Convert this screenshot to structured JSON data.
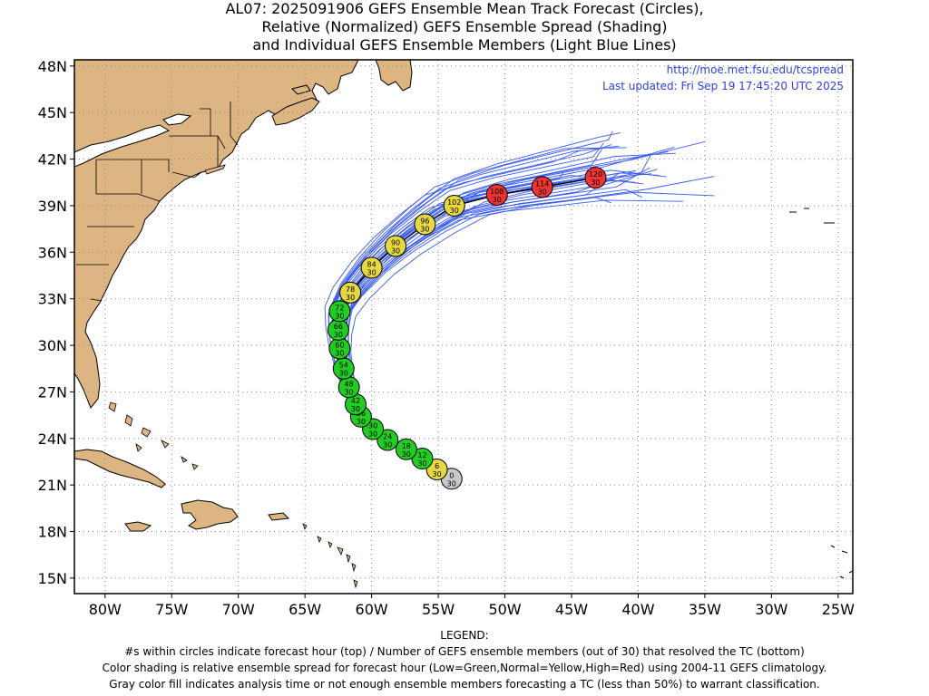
{
  "title": {
    "line1": "AL07: 2025091906 GEFS Ensemble Mean Track Forecast (Circles),",
    "line2": "Relative (Normalized) GEFS Ensemble Spread (Shading)",
    "line3": "and Individual GEFS Ensemble Members (Light Blue Lines)"
  },
  "header_info": {
    "url": "http://moe.met.fsu.edu/tcspread",
    "updated": "Last updated: Fri Sep 19 17:45:20 UTC 2025"
  },
  "axes": {
    "lat_labels": [
      "48N",
      "45N",
      "42N",
      "39N",
      "36N",
      "33N",
      "30N",
      "27N",
      "24N",
      "21N",
      "18N",
      "15N"
    ],
    "lat_values": [
      48,
      45,
      42,
      39,
      36,
      33,
      30,
      27,
      24,
      21,
      18,
      15
    ],
    "lon_labels": [
      "80W",
      "75W",
      "70W",
      "65W",
      "60W",
      "55W",
      "50W",
      "45W",
      "40W",
      "35W",
      "30W",
      "25W"
    ],
    "lon_values": [
      80,
      75,
      70,
      65,
      60,
      55,
      50,
      45,
      40,
      35,
      30,
      25
    ],
    "lon_range_w": [
      82.3,
      23.9
    ],
    "lat_range_n": [
      14.0,
      48.4
    ]
  },
  "colors": {
    "land": "#dcb582",
    "ocean": "#ffffff",
    "member_line": "#3a5cf0",
    "mean_track": "#000000",
    "low_spread": "#22cc22",
    "normal_spread": "#e6d840",
    "high_spread": "#ee3333",
    "analysis": "#c8c8c8",
    "grid": "#888888",
    "header_link": "#3040e0"
  },
  "track": [
    {
      "hour": "0",
      "members": "30",
      "lat": 21.4,
      "lon_w": 54.0,
      "cat": "analysis"
    },
    {
      "hour": "6",
      "members": "30",
      "lat": 22.0,
      "lon_w": 55.1,
      "cat": "normal"
    },
    {
      "hour": "12",
      "members": "30",
      "lat": 22.7,
      "lon_w": 56.2,
      "cat": "low"
    },
    {
      "hour": "18",
      "members": "30",
      "lat": 23.3,
      "lon_w": 57.4,
      "cat": "low"
    },
    {
      "hour": "24",
      "members": "30",
      "lat": 23.9,
      "lon_w": 58.8,
      "cat": "low"
    },
    {
      "hour": "30",
      "members": "30",
      "lat": 24.6,
      "lon_w": 59.9,
      "cat": "low"
    },
    {
      "hour": "36",
      "members": "30",
      "lat": 25.4,
      "lon_w": 60.8,
      "cat": "low"
    },
    {
      "hour": "42",
      "members": "30",
      "lat": 26.2,
      "lon_w": 61.2,
      "cat": "low"
    },
    {
      "hour": "48",
      "members": "30",
      "lat": 27.3,
      "lon_w": 61.7,
      "cat": "low"
    },
    {
      "hour": "54",
      "members": "30",
      "lat": 28.5,
      "lon_w": 62.1,
      "cat": "low"
    },
    {
      "hour": "60",
      "members": "30",
      "lat": 29.8,
      "lon_w": 62.4,
      "cat": "low"
    },
    {
      "hour": "66",
      "members": "30",
      "lat": 31.0,
      "lon_w": 62.5,
      "cat": "low"
    },
    {
      "hour": "72",
      "members": "30",
      "lat": 32.2,
      "lon_w": 62.4,
      "cat": "low"
    },
    {
      "hour": "78",
      "members": "30",
      "lat": 33.4,
      "lon_w": 61.6,
      "cat": "normal"
    },
    {
      "hour": "84",
      "members": "30",
      "lat": 35.0,
      "lon_w": 60.0,
      "cat": "normal"
    },
    {
      "hour": "90",
      "members": "30",
      "lat": 36.4,
      "lon_w": 58.2,
      "cat": "normal"
    },
    {
      "hour": "96",
      "members": "30",
      "lat": 37.8,
      "lon_w": 56.0,
      "cat": "normal"
    },
    {
      "hour": "102",
      "members": "30",
      "lat": 39.0,
      "lon_w": 53.8,
      "cat": "normal"
    },
    {
      "hour": "108",
      "members": "30",
      "lat": 39.7,
      "lon_w": 50.6,
      "cat": "high"
    },
    {
      "hour": "114",
      "members": "30",
      "lat": 40.2,
      "lon_w": 47.2,
      "cat": "high"
    },
    {
      "hour": "120",
      "members": "30",
      "lat": 40.8,
      "lon_w": 43.2,
      "cat": "high"
    }
  ],
  "legend": {
    "heading": "LEGEND:",
    "line1": "#s within circles indicate forecast hour (top) / Number of GEFS ensemble members (out of 30) that resolved the TC (bottom)",
    "line2": "Color shading is relative ensemble spread for forecast hour (Low=Green,Normal=Yellow,High=Red) using 2004-11 GEFS climatology.",
    "line3": "Gray color fill indicates analysis time or not enough ensemble members forecasting a TC (less than 50%) to warrant classification."
  }
}
